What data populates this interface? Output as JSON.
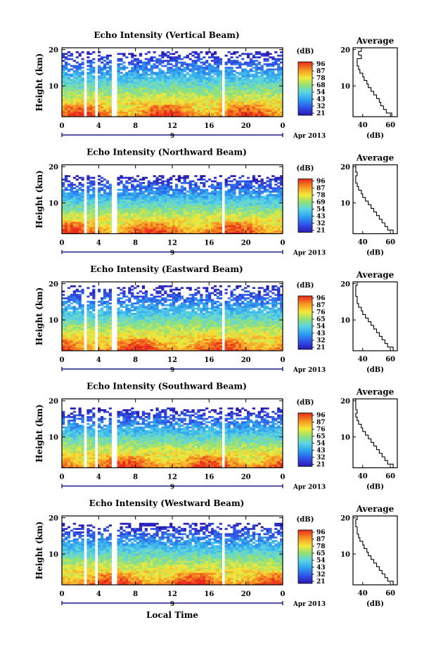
{
  "figure": {
    "date_label": "Apr 2013",
    "xlabel": "Local Time",
    "colorbar_label": "(dB)",
    "side_title": "Average",
    "side_xlabel": "(dB)"
  },
  "chart_data": [
    {
      "type": "heatmap",
      "title": "Echo Intensity (Vertical Beam)",
      "ylabel": "Height (km)",
      "xlabel": "Local Time",
      "x_ticks": [
        "0",
        "4",
        "8",
        "12",
        "16",
        "20",
        "0"
      ],
      "day_tick": "9",
      "xlim": [
        0,
        24
      ],
      "y_ticks": [
        "20",
        "10"
      ],
      "ylim": [
        1.5,
        20.5
      ],
      "colorbar": {
        "label": "(dB)",
        "ticks": [
          "96",
          "87",
          "78",
          "68",
          "54",
          "43",
          "32",
          "21"
        ],
        "range": [
          21,
          96
        ]
      },
      "data_gaps_hours": [
        [
          2.4,
          2.8
        ],
        [
          3.6,
          4.0
        ],
        [
          5.4,
          5.9
        ],
        [
          17.5,
          17.75
        ]
      ],
      "echo_top_km": 19.5,
      "profile": {
        "title": "Average",
        "xlabel": "(dB)",
        "xticks": [
          "40",
          "60"
        ],
        "xlim": [
          33,
          65
        ],
        "y_ticks": [
          "20",
          "10"
        ],
        "height_km": [
          2,
          3,
          4,
          5,
          6,
          7,
          8,
          9,
          10,
          11,
          12,
          13,
          14,
          15,
          16,
          17,
          18,
          19,
          20
        ],
        "value_db": [
          61,
          57,
          55,
          53,
          52,
          50,
          48,
          46,
          44,
          43,
          41,
          40,
          38,
          37,
          36,
          36,
          39,
          37,
          39
        ]
      }
    },
    {
      "type": "heatmap",
      "title": "Echo Intensity (Northward Beam)",
      "ylabel": "Height (km)",
      "xlabel": "Local Time",
      "x_ticks": [
        "0",
        "4",
        "8",
        "12",
        "16",
        "20",
        "0"
      ],
      "day_tick": "9",
      "xlim": [
        0,
        24
      ],
      "y_ticks": [
        "20",
        "10"
      ],
      "ylim": [
        1.5,
        20.5
      ],
      "colorbar": {
        "label": "(dB)",
        "ticks": [
          "96",
          "87",
          "78",
          "69",
          "54",
          "43",
          "32",
          "21"
        ],
        "range": [
          21,
          96
        ]
      },
      "data_gaps_hours": [
        [
          2.4,
          2.8
        ],
        [
          3.6,
          4.0
        ],
        [
          5.4,
          5.9
        ],
        [
          17.5,
          17.75
        ]
      ],
      "echo_top_km": 17.5,
      "profile": {
        "title": "Average",
        "xlabel": "(dB)",
        "xticks": [
          "40",
          "60"
        ],
        "xlim": [
          33,
          65
        ],
        "y_ticks": [
          "20",
          "10"
        ],
        "height_km": [
          2,
          3,
          4,
          5,
          6,
          7,
          8,
          9,
          10,
          11,
          12,
          13,
          14,
          15,
          16,
          17,
          18,
          19,
          20
        ],
        "value_db": [
          62,
          58,
          56,
          54,
          52,
          50,
          48,
          46,
          44,
          42,
          40,
          39,
          37,
          36,
          35,
          35,
          36,
          35,
          35
        ]
      }
    },
    {
      "type": "heatmap",
      "title": "Echo Intensity (Eastward Beam)",
      "ylabel": "Height (km)",
      "xlabel": "Local Time",
      "x_ticks": [
        "0",
        "4",
        "8",
        "12",
        "16",
        "20",
        "0"
      ],
      "day_tick": "9",
      "xlim": [
        0,
        24
      ],
      "y_ticks": [
        "20",
        "10"
      ],
      "ylim": [
        1.5,
        20.5
      ],
      "colorbar": {
        "label": "(dB)",
        "ticks": [
          "96",
          "87",
          "76",
          "65",
          "54",
          "43",
          "32",
          "21"
        ],
        "range": [
          21,
          96
        ]
      },
      "data_gaps_hours": [
        [
          2.4,
          2.8
        ],
        [
          3.6,
          4.0
        ],
        [
          5.4,
          5.9
        ],
        [
          17.5,
          17.75
        ]
      ],
      "echo_top_km": 19.5,
      "profile": {
        "title": "Average",
        "xlabel": "(dB)",
        "xticks": [
          "40",
          "60"
        ],
        "xlim": [
          33,
          65
        ],
        "y_ticks": [
          "20",
          "10"
        ],
        "height_km": [
          2,
          3,
          4,
          5,
          6,
          7,
          8,
          9,
          10,
          11,
          12,
          13,
          14,
          15,
          16,
          17,
          18,
          19,
          20
        ],
        "value_db": [
          62,
          58,
          56,
          54,
          52,
          50,
          48,
          46,
          44,
          42,
          40,
          39,
          37,
          36,
          36,
          35,
          35,
          35,
          36
        ]
      }
    },
    {
      "type": "heatmap",
      "title": "Echo Intensity (Southward Beam)",
      "ylabel": "Height (km)",
      "xlabel": "Local Time",
      "x_ticks": [
        "0",
        "4",
        "8",
        "12",
        "16",
        "20",
        "0"
      ],
      "day_tick": "9",
      "xlim": [
        0,
        24
      ],
      "y_ticks": [
        "20",
        "10"
      ],
      "ylim": [
        1.5,
        20.5
      ],
      "colorbar": {
        "label": "(dB)",
        "ticks": [
          "96",
          "87",
          "76",
          "65",
          "54",
          "43",
          "32",
          "21"
        ],
        "range": [
          21,
          96
        ]
      },
      "data_gaps_hours": [
        [
          2.4,
          2.8
        ],
        [
          3.6,
          4.0
        ],
        [
          5.4,
          5.9
        ],
        [
          17.5,
          17.75
        ]
      ],
      "echo_top_km": 18.0,
      "profile": {
        "title": "Average",
        "xlabel": "(dB)",
        "xticks": [
          "40",
          "60"
        ],
        "xlim": [
          33,
          65
        ],
        "y_ticks": [
          "20",
          "10"
        ],
        "height_km": [
          2,
          3,
          4,
          5,
          6,
          7,
          8,
          9,
          10,
          11,
          12,
          13,
          14,
          15,
          16,
          17,
          18,
          19,
          20
        ],
        "value_db": [
          62,
          58,
          56,
          54,
          52,
          50,
          48,
          46,
          44,
          42,
          40,
          39,
          37,
          36,
          35,
          36,
          35,
          35,
          35
        ]
      }
    },
    {
      "type": "heatmap",
      "title": "Echo Intensity (Westward Beam)",
      "ylabel": "Height (km)",
      "xlabel": "Local Time",
      "x_ticks": [
        "0",
        "4",
        "8",
        "12",
        "16",
        "20",
        "0"
      ],
      "day_tick": "9",
      "xlim": [
        0,
        24
      ],
      "y_ticks": [
        "20",
        "10"
      ],
      "ylim": [
        1.5,
        20.5
      ],
      "colorbar": {
        "label": "(dB)",
        "ticks": [
          "96",
          "87",
          "78",
          "65",
          "54",
          "43",
          "32",
          "21"
        ],
        "range": [
          21,
          96
        ]
      },
      "data_gaps_hours": [
        [
          2.4,
          2.8
        ],
        [
          3.6,
          4.0
        ],
        [
          5.4,
          5.9
        ],
        [
          17.5,
          17.75
        ]
      ],
      "echo_top_km": 18.5,
      "profile": {
        "title": "Average",
        "xlabel": "(dB)",
        "xticks": [
          "40",
          "60"
        ],
        "xlim": [
          33,
          65
        ],
        "y_ticks": [
          "20",
          "10"
        ],
        "height_km": [
          2,
          3,
          4,
          5,
          6,
          7,
          8,
          9,
          10,
          11,
          12,
          13,
          14,
          15,
          16,
          17,
          18,
          19,
          20
        ],
        "value_db": [
          62,
          58,
          56,
          54,
          52,
          50,
          48,
          46,
          44,
          43,
          41,
          40,
          38,
          37,
          36,
          36,
          35,
          35,
          36
        ]
      }
    }
  ]
}
